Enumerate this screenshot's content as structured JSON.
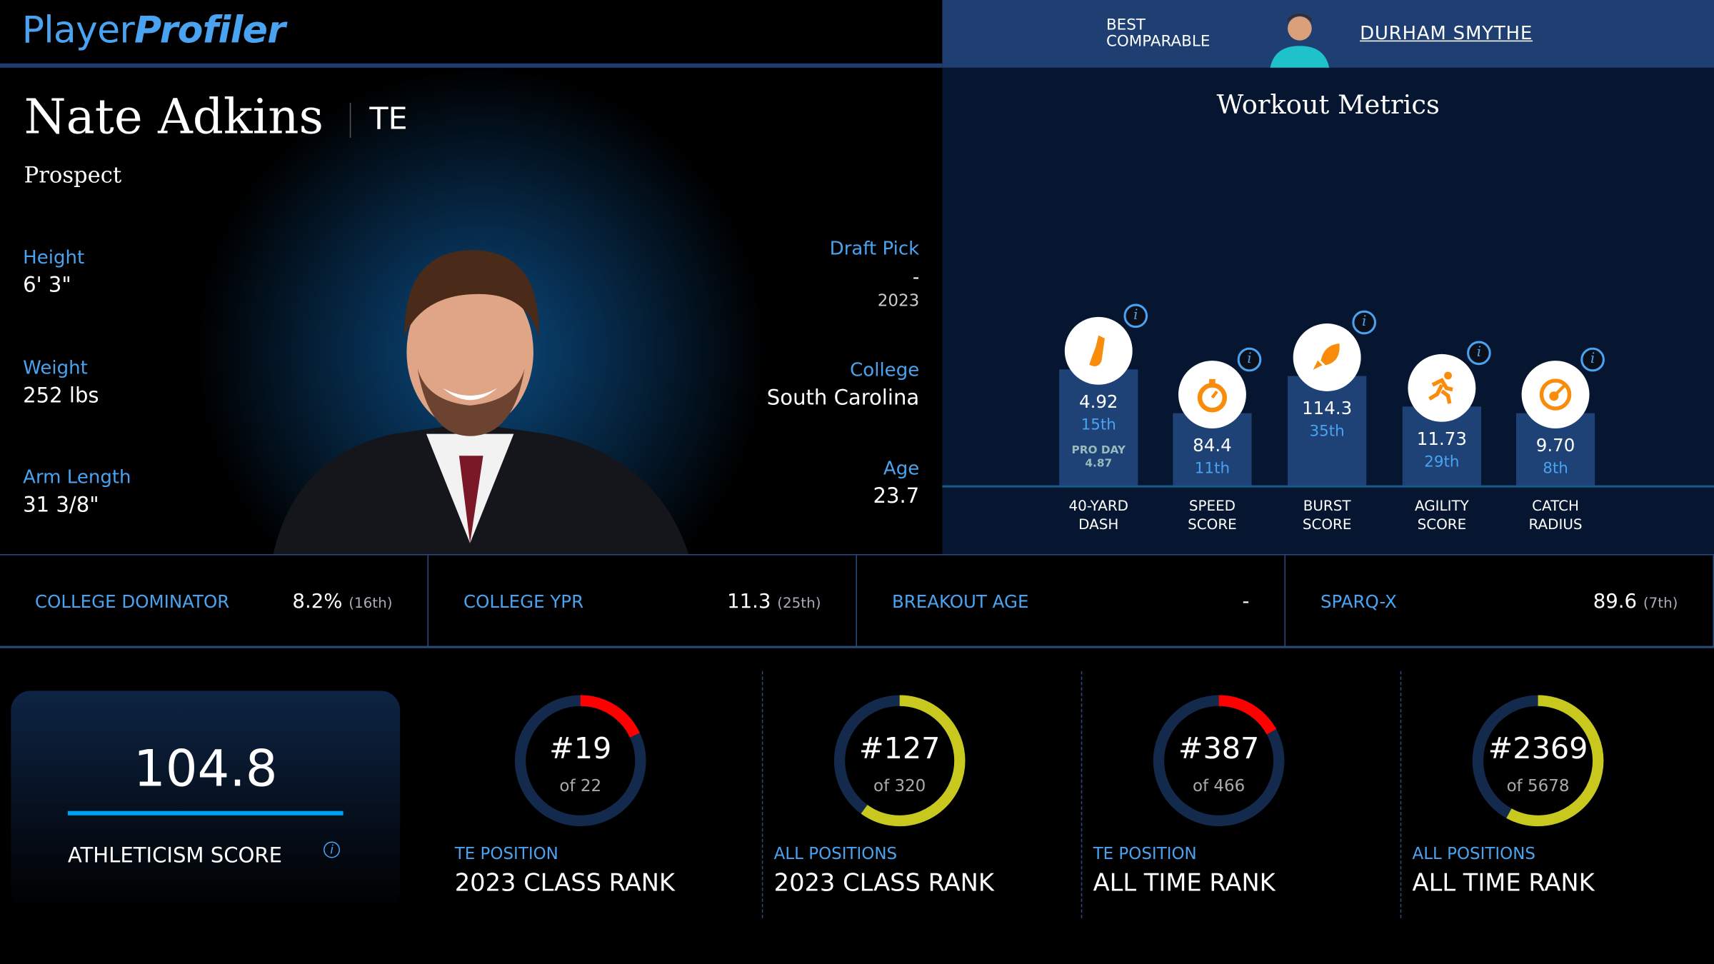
{
  "brand": {
    "part1": "Player",
    "part2": "Profiler"
  },
  "comparable": {
    "label_line1": "BEST",
    "label_line2": "COMPARABLE",
    "name": "DURHAM SMYTHE"
  },
  "player": {
    "name": "Nate Adkins",
    "position": "TE",
    "status": "Prospect",
    "height_label": "Height",
    "height": "6' 3\"",
    "weight_label": "Weight",
    "weight": "252 lbs",
    "arm_label": "Arm Length",
    "arm": "31 3/8\"",
    "draft_label": "Draft Pick",
    "draft_pick": "-",
    "draft_year": "2023",
    "college_label": "College",
    "college": "South Carolina",
    "age_label": "Age",
    "age": "23.7"
  },
  "workout": {
    "title": "Workout Metrics",
    "metrics": [
      {
        "icon": "shoe-icon",
        "value": "4.92",
        "pct": "15th",
        "extra1": "PRO DAY",
        "extra2": "4.87",
        "label1": "40-YARD",
        "label2": "DASH"
      },
      {
        "icon": "stopwatch-icon",
        "value": "84.4",
        "pct": "11th",
        "label1": "SPEED",
        "label2": "SCORE"
      },
      {
        "icon": "rocket-icon",
        "value": "114.3",
        "pct": "35th",
        "label1": "BURST",
        "label2": "SCORE"
      },
      {
        "icon": "runner-icon",
        "value": "11.73",
        "pct": "29th",
        "label1": "AGILITY",
        "label2": "SCORE"
      },
      {
        "icon": "target-icon",
        "value": "9.70",
        "pct": "8th",
        "label1": "CATCH",
        "label2": "RADIUS"
      }
    ]
  },
  "stats": [
    {
      "label": "COLLEGE DOMINATOR",
      "value": "8.2%",
      "rank": "(16th)"
    },
    {
      "label": "COLLEGE YPR",
      "value": "11.3",
      "rank": "(25th)"
    },
    {
      "label": "BREAKOUT AGE",
      "value": "-",
      "rank": ""
    },
    {
      "label": "SPARQ-X",
      "value": "89.6",
      "rank": "(7th)"
    }
  ],
  "athleticism": {
    "score": "104.8",
    "label": "ATHLETICISM SCORE",
    "info": "i"
  },
  "ranks": [
    {
      "rank": "#19",
      "of": "of 22",
      "category": "TE POSITION",
      "title": "2023 CLASS RANK",
      "fraction": 0.18,
      "color": "#ff0000"
    },
    {
      "rank": "#127",
      "of": "of 320",
      "category": "ALL POSITIONS",
      "title": "2023 CLASS RANK",
      "fraction": 0.6,
      "color": "#c8c81e"
    },
    {
      "rank": "#387",
      "of": "of 466",
      "category": "TE POSITION",
      "title": "ALL TIME RANK",
      "fraction": 0.17,
      "color": "#ff0000"
    },
    {
      "rank": "#2369",
      "of": "of 5678",
      "category": "ALL POSITIONS",
      "title": "ALL TIME RANK",
      "fraction": 0.58,
      "color": "#c8c81e"
    }
  ]
}
